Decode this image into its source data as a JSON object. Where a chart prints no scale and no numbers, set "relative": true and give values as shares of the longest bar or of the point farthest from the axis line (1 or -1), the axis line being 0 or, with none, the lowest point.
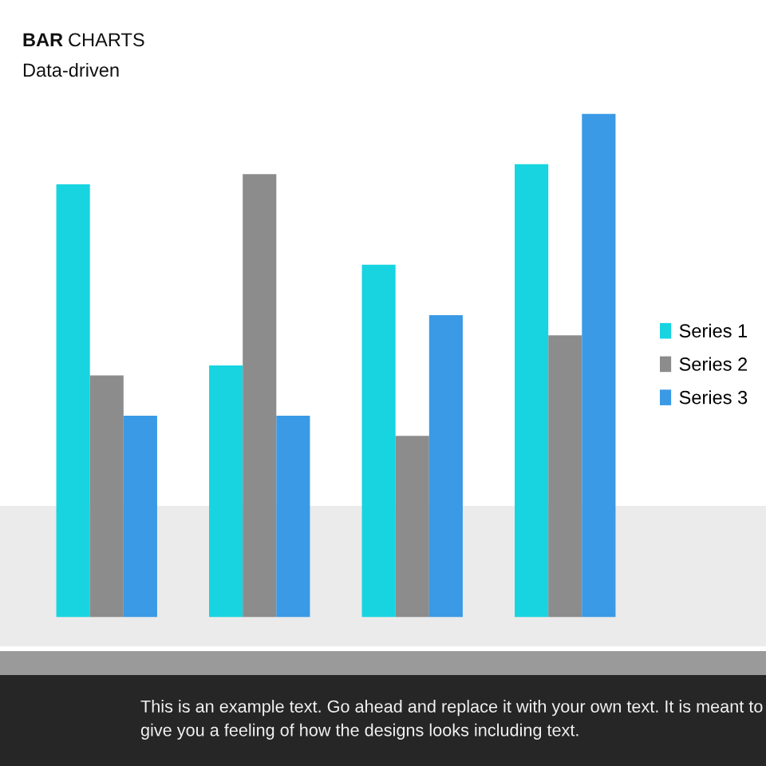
{
  "chart_data": {
    "type": "bar",
    "title": "BAR CHARTS",
    "subtitle": "Data-driven",
    "categories": [
      null,
      null,
      null,
      null
    ],
    "relative": true,
    "series": [
      {
        "name": "Series 1",
        "color": "#17d4e0",
        "values": [
          0.86,
          0.5,
          0.7,
          0.9
        ]
      },
      {
        "name": "Series 2",
        "color": "#8c8c8c",
        "values": [
          0.48,
          0.88,
          0.36,
          0.56
        ]
      },
      {
        "name": "Series 3",
        "color": "#3a9ae6",
        "values": [
          0.4,
          0.4,
          0.6,
          1.0
        ]
      }
    ],
    "legend": "right",
    "grid": false,
    "annotations": [
      "This is an example text. Go ahead and replace it with your own text. It is meant to give you a feeling of how the designs looks including text."
    ]
  }
}
